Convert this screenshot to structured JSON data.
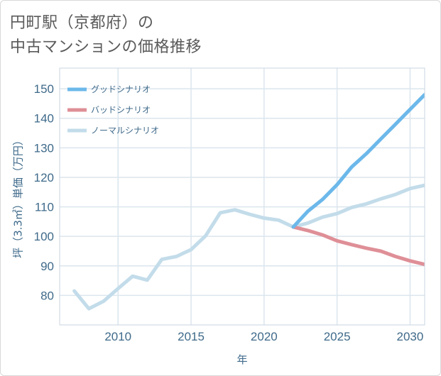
{
  "title": {
    "line1": "円町駅（京都府）の",
    "line2": "中古マンションの価格推移"
  },
  "chart_data": {
    "type": "line",
    "xlabel": "年",
    "ylabel": "坪（3.3㎡）単価（万円）",
    "xlim": [
      2006,
      2031
    ],
    "ylim": [
      70,
      157
    ],
    "xticks": [
      2010,
      2015,
      2020,
      2025,
      2030
    ],
    "yticks": [
      80,
      90,
      100,
      110,
      120,
      130,
      140,
      150
    ],
    "series": [
      {
        "name": "ノーマルシナリオ",
        "color": "#c3dcea",
        "x": [
          2007,
          2008,
          2009,
          2010,
          2011,
          2012,
          2013,
          2014,
          2015,
          2016,
          2017,
          2018,
          2019,
          2020,
          2021,
          2022,
          2023,
          2024,
          2025,
          2026,
          2027,
          2028,
          2029,
          2030,
          2031
        ],
        "values": [
          81.5,
          75.5,
          78,
          82.3,
          86.5,
          85.2,
          92.2,
          93.2,
          95.5,
          100.2,
          108,
          109,
          107.5,
          106.2,
          105.5,
          103.2,
          104.5,
          106.5,
          107.7,
          109.8,
          111,
          112.7,
          114.2,
          116.2,
          117.3
        ]
      },
      {
        "name": "グッドシナリオ",
        "color": "#6cb8ea",
        "x": [
          2022,
          2023,
          2024,
          2025,
          2026,
          2027,
          2028,
          2029,
          2030,
          2031
        ],
        "values": [
          103.2,
          108.5,
          112.5,
          117.5,
          123.5,
          128,
          133,
          138,
          143,
          148
        ]
      },
      {
        "name": "バッドシナリオ",
        "color": "#df8f97",
        "x": [
          2022,
          2023,
          2024,
          2025,
          2026,
          2027,
          2028,
          2029,
          2030,
          2031
        ],
        "values": [
          103.2,
          102,
          100.5,
          98.5,
          97.2,
          96,
          95,
          93.2,
          91.7,
          90.5
        ]
      }
    ],
    "legend": {
      "position": "top-left",
      "entries": [
        "グッドシナリオ",
        "バッドシナリオ",
        "ノーマルシナリオ"
      ]
    }
  }
}
